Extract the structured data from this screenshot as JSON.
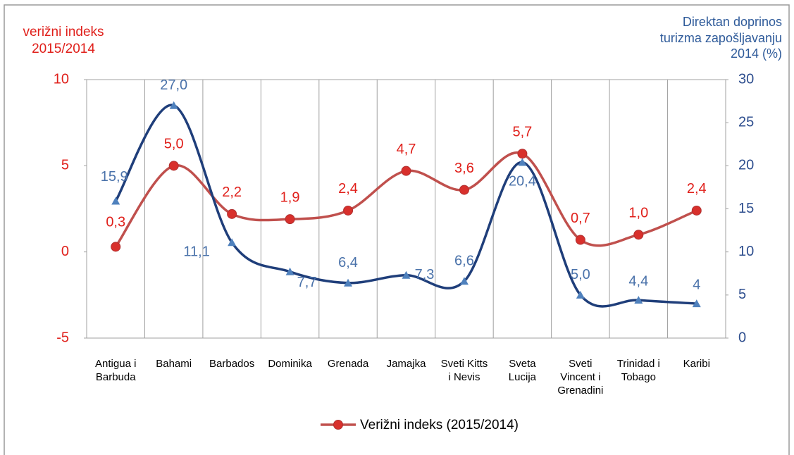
{
  "chart_data": {
    "type": "line",
    "y_label": "verižni indeks\n2015/2014",
    "y2_label": "Direktan doprinos\nturizma zapošljavanju\n2014 (%)",
    "categories": [
      "Antigua i\nBarbuda",
      "Bahami",
      "Barbados",
      "Dominika",
      "Grenada",
      "Jamajka",
      "Sveti Kitts\ni Nevis",
      "Sveta\nLucija",
      "Sveti\nVincent i\nGrenadini",
      "Trinidad i\nTobago",
      "Karibi"
    ],
    "series": [
      {
        "name": "Verižni indeks (2015/2014)",
        "color": "#c0504d",
        "marker_color": "#d8302c",
        "label_color": "#e0201b",
        "marker": "circle",
        "values": [
          0.3,
          5.0,
          2.2,
          1.9,
          2.4,
          4.7,
          3.6,
          5.7,
          0.7,
          1.0,
          2.4
        ],
        "value_labels": [
          "0,3",
          "5,0",
          "2,2",
          "1,9",
          "2,4",
          "4,7",
          "3,6",
          "5,7",
          "0,7",
          "1,0",
          "2,4"
        ]
      },
      {
        "color": "#1f3e7a",
        "marker_color": "#4f81bd",
        "label_color": "#4a72aa",
        "marker": "triangle",
        "axis": "y2",
        "values": [
          15.9,
          27.0,
          11.1,
          7.7,
          6.4,
          7.3,
          6.6,
          20.4,
          5.0,
          4.4,
          4
        ],
        "value_labels": [
          "15,9",
          "27,0",
          "11,1",
          "7,7",
          "6,4",
          "7,3",
          "6,6",
          "20,4",
          "5,0",
          "4,4",
          "4"
        ]
      }
    ],
    "ylim": [
      -5,
      10
    ],
    "yticks": [
      -5,
      0,
      5,
      10
    ],
    "y2lim": [
      0,
      30
    ],
    "y2ticks": [
      0,
      5,
      10,
      15,
      20,
      25,
      30
    ],
    "legend": "bottom"
  }
}
